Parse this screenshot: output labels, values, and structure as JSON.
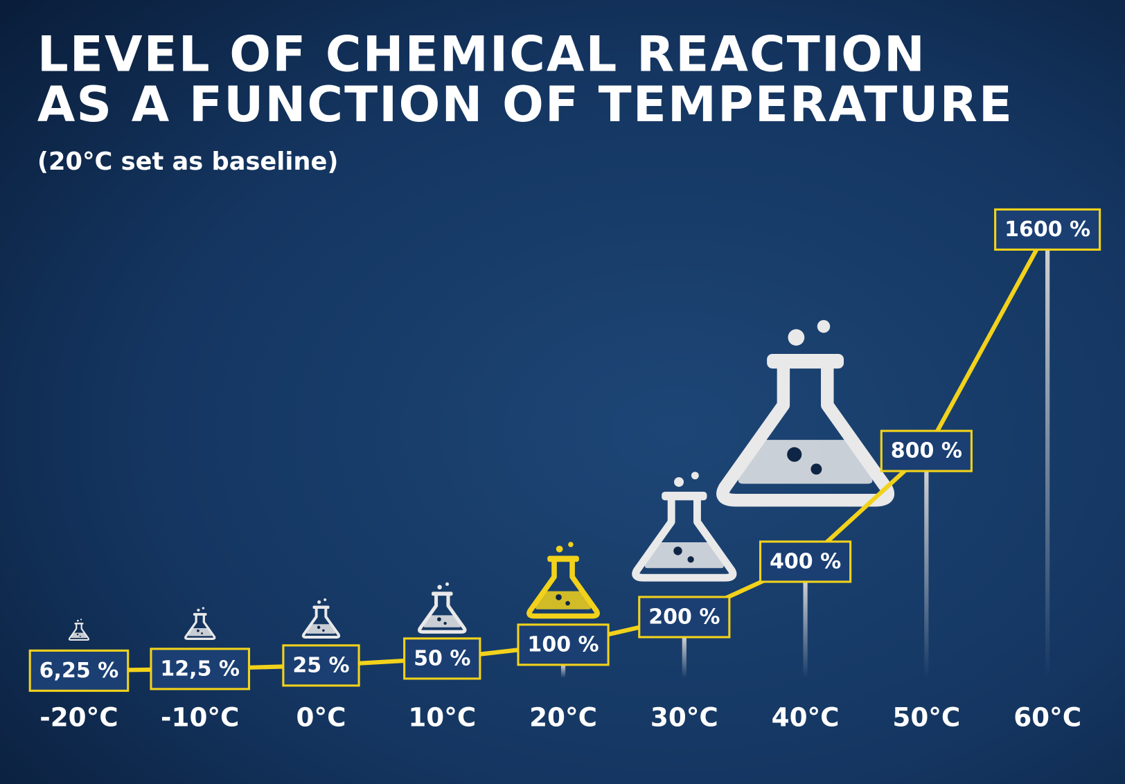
{
  "chart_data": {
    "type": "line",
    "title": [
      "LEVEL OF CHEMICAL REACTION",
      "AS A FUNCTION OF TEMPERATURE"
    ],
    "subtitle": "(20°C set as baseline)",
    "categories": [
      "-20°C",
      "-10°C",
      "0°C",
      "10°C",
      "20°C",
      "30°C",
      "40°C",
      "50°C",
      "60°C"
    ],
    "values": [
      6.25,
      12.5,
      25,
      50,
      100,
      200,
      400,
      800,
      1600
    ],
    "value_labels": [
      "6,25 %",
      "12,5 %",
      "25 %",
      "50 %",
      "100 %",
      "200 %",
      "400 %",
      "800 %",
      "1600 %"
    ],
    "color": "#f2d21b",
    "baseline_category": "20°C"
  }
}
